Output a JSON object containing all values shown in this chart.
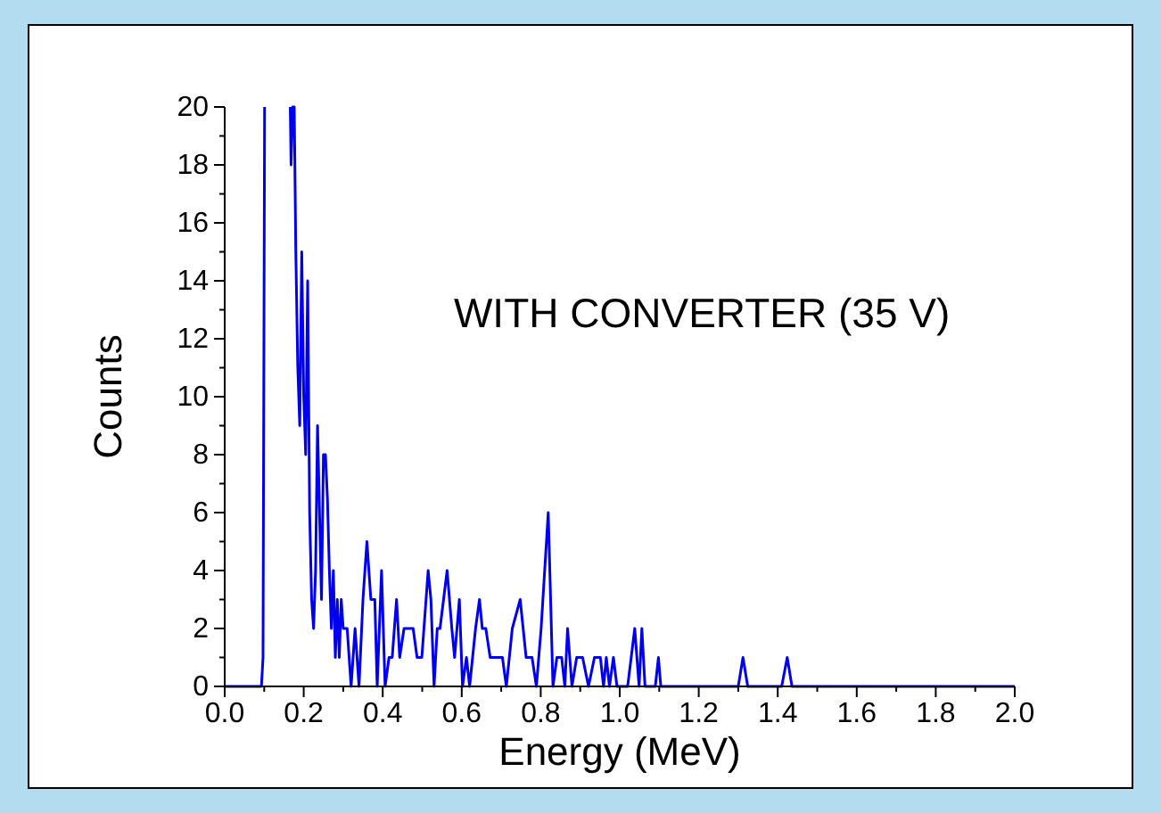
{
  "chart_data": {
    "type": "line",
    "xlabel": "Energy (MeV)",
    "ylabel": "Counts",
    "annotations": [
      "WITH CONVERTER (35 V)"
    ],
    "xlim": [
      0,
      2
    ],
    "ylim": [
      0,
      20
    ],
    "xticks": [
      {
        "value": 0,
        "label": "0.0"
      },
      {
        "value": 0.1,
        "label": null
      },
      {
        "value": 0.2,
        "label": "0.2"
      },
      {
        "value": 0.3,
        "label": null
      },
      {
        "value": 0.4,
        "label": "0.4"
      },
      {
        "value": 0.5,
        "label": null
      },
      {
        "value": 0.6,
        "label": "0.6"
      },
      {
        "value": 0.7,
        "label": null
      },
      {
        "value": 0.8,
        "label": "0.8"
      },
      {
        "value": 0.9,
        "label": null
      },
      {
        "value": 1,
        "label": "1.0"
      },
      {
        "value": 1.1,
        "label": null
      },
      {
        "value": 1.2,
        "label": "1.2"
      },
      {
        "value": 1.3,
        "label": null
      },
      {
        "value": 1.4,
        "label": "1.4"
      },
      {
        "value": 1.5,
        "label": null
      },
      {
        "value": 1.6,
        "label": "1.6"
      },
      {
        "value": 1.7,
        "label": null
      },
      {
        "value": 1.8,
        "label": "1.8"
      },
      {
        "value": 1.9,
        "label": null
      },
      {
        "value": 2,
        "label": "2.0"
      }
    ],
    "yticks": [
      0,
      {
        "value": 1,
        "label": null
      },
      2,
      {
        "value": 3,
        "label": null
      },
      4,
      {
        "value": 5,
        "label": null
      },
      6,
      {
        "value": 7,
        "label": null
      },
      8,
      {
        "value": 9,
        "label": null
      },
      10,
      {
        "value": 11,
        "label": null
      },
      12,
      {
        "value": 13,
        "label": null
      },
      14,
      {
        "value": 15,
        "label": null
      },
      16,
      {
        "value": 17,
        "label": null
      },
      18,
      {
        "value": 19,
        "label": null
      },
      20
    ],
    "grid": false,
    "marker": "none",
    "line_style": "solid",
    "series": [
      {
        "color": "#0000ee",
        "x": [
          0,
          0.093,
          0.097,
          0.101,
          0.13,
          0.166,
          0.168,
          0.172,
          0.176,
          0.18,
          0.185,
          0.19,
          0.195,
          0.2,
          0.205,
          0.21,
          0.215,
          0.22,
          0.225,
          0.23,
          0.235,
          0.24,
          0.245,
          0.25,
          0.255,
          0.26,
          0.265,
          0.27,
          0.275,
          0.28,
          0.285,
          0.29,
          0.295,
          0.3,
          0.31,
          0.32,
          0.33,
          0.34,
          0.35,
          0.36,
          0.37,
          0.38,
          0.386,
          0.397,
          0.406,
          0.416,
          0.424,
          0.435,
          0.443,
          0.454,
          0.477,
          0.487,
          0.499,
          0.515,
          0.522,
          0.53,
          0.538,
          0.545,
          0.563,
          0.575,
          0.582,
          0.594,
          0.602,
          0.612,
          0.62,
          0.635,
          0.645,
          0.652,
          0.661,
          0.672,
          0.695,
          0.703,
          0.713,
          0.728,
          0.748,
          0.763,
          0.778,
          0.789,
          0.801,
          0.819,
          0.831,
          0.841,
          0.853,
          0.861,
          0.868,
          0.879,
          0.891,
          0.906,
          0.921,
          0.936,
          0.951,
          0.959,
          0.966,
          0.974,
          0.984,
          0.993,
          1.02,
          1.038,
          1.049,
          1.056,
          1.064,
          1.09,
          1.098,
          1.104,
          1.3,
          1.312,
          1.324,
          1.41,
          1.424,
          1.436,
          2
        ],
        "values": [
          0,
          0,
          1,
          20,
          null,
          20,
          18,
          20,
          20,
          15,
          11,
          9,
          15,
          10,
          8,
          14,
          6,
          3,
          2,
          4,
          9,
          6,
          3,
          8,
          8,
          6.5,
          4,
          2,
          4,
          1,
          3,
          1,
          3,
          2,
          2,
          0,
          2,
          0,
          3,
          5,
          3,
          3,
          0,
          4,
          0,
          1,
          1,
          3,
          1,
          2,
          2,
          1,
          1,
          4,
          3,
          0,
          2,
          2,
          4,
          2,
          1,
          3,
          0,
          1,
          0,
          2,
          3,
          2,
          2,
          1,
          1,
          1,
          0,
          2,
          3,
          1,
          1,
          0,
          2,
          6,
          0,
          1,
          1,
          0,
          2,
          0,
          1,
          1,
          0,
          1,
          1,
          0,
          1,
          0,
          1,
          0,
          0,
          2,
          0,
          2,
          0,
          0,
          1,
          0,
          0,
          1,
          0,
          0,
          1,
          0,
          0
        ]
      }
    ]
  }
}
